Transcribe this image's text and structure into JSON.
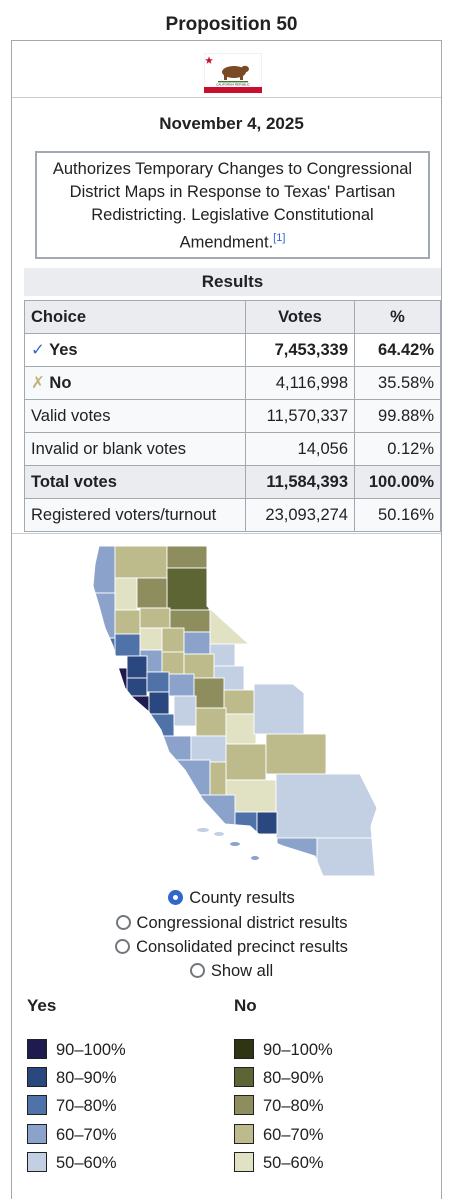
{
  "title": "Proposition 50",
  "date": "November 4, 2025",
  "description": "Authorizes Temporary Changes to Congressional District Maps in Response to Texas' Partisan Redistricting. Legislative Constitutional Amendment.",
  "description_ref": "[1]",
  "flag": {
    "banner_text": "CALIFORNIA REPUBLIC"
  },
  "results": {
    "heading": "Results",
    "columns": [
      "Choice",
      "Votes",
      "%"
    ],
    "rows": [
      {
        "choice": "Yes",
        "mark": "check-icon",
        "votes": "7,453,339",
        "pct": "64.42%"
      },
      {
        "choice": "No",
        "mark": "cross-icon",
        "votes": "4,116,998",
        "pct": "35.58%"
      },
      {
        "choice": "Valid votes",
        "votes": "11,570,337",
        "pct": "99.88%"
      },
      {
        "choice": "Invalid or blank votes",
        "votes": "14,056",
        "pct": "0.12%"
      },
      {
        "choice": "Total votes",
        "votes": "11,584,393",
        "pct": "100.00%"
      },
      {
        "choice": "Registered voters/turnout",
        "votes": "23,093,274",
        "pct": "50.16%"
      }
    ]
  },
  "map_options": {
    "county": "County results",
    "district": "Congressional district results",
    "precinct": "Consolidated precinct results",
    "all": "Show all",
    "selected": "County results"
  },
  "legend": {
    "yes_title": "Yes",
    "no_title": "No",
    "yes": [
      {
        "label": "90–100%",
        "color": "#1f1b4e"
      },
      {
        "label": "80–90%",
        "color": "#2b4780"
      },
      {
        "label": "70–80%",
        "color": "#4f72a8"
      },
      {
        "label": "60–70%",
        "color": "#8ba2cb"
      },
      {
        "label": "50–60%",
        "color": "#c3cfe2"
      }
    ],
    "no": [
      {
        "label": "90–100%",
        "color": "#2f3412"
      },
      {
        "label": "80–90%",
        "color": "#5d6534"
      },
      {
        "label": "70–80%",
        "color": "#8e8d5e"
      },
      {
        "label": "60–70%",
        "color": "#bdbb8c"
      },
      {
        "label": "50–60%",
        "color": "#e1e1c4"
      }
    ]
  }
}
